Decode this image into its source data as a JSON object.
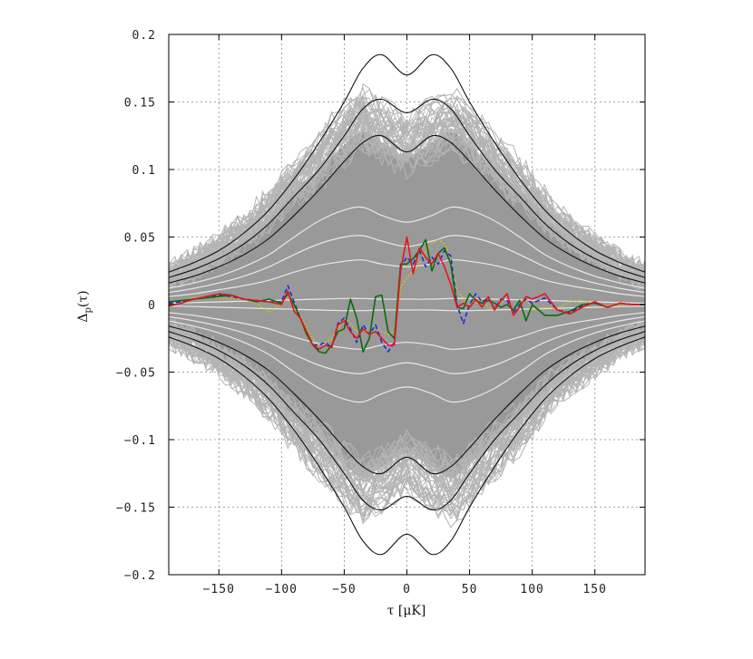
{
  "chart_data": {
    "type": "line",
    "xlabel": "τ  [μK]",
    "ylabel": "Δp(τ)",
    "ylabel_main": "Δ",
    "ylabel_sub": "p",
    "ylabel_arg": "(τ)",
    "xlim": [
      -190,
      190
    ],
    "ylim": [
      -0.2,
      0.2
    ],
    "x_ticks": [
      -150,
      -100,
      -50,
      0,
      50,
      100,
      150
    ],
    "y_ticks": [
      -0.2,
      -0.15,
      -0.1,
      -0.05,
      0,
      0.05,
      0.1,
      0.15,
      0.2
    ],
    "x_tick_labels": [
      "−150",
      "−100",
      "−50",
      "0",
      "50",
      "100",
      "150"
    ],
    "y_tick_labels": [
      "−0.2",
      "−0.15",
      "−0.1",
      "−0.05",
      "0",
      "0.05",
      "0.1",
      "0.15",
      "0.2"
    ],
    "grid": true,
    "envelope": {
      "description": "grey band of simulated curves",
      "color": "#999999",
      "sim_line_color": "#b4b4b4",
      "x": [
        -190,
        -170,
        -150,
        -130,
        -110,
        -90,
        -70,
        -50,
        -35,
        -20,
        0,
        20,
        35,
        50,
        70,
        90,
        110,
        130,
        150,
        170,
        190
      ],
      "outer": [
        0.02,
        0.028,
        0.038,
        0.05,
        0.065,
        0.085,
        0.1,
        0.118,
        0.128,
        0.12,
        0.11,
        0.12,
        0.128,
        0.118,
        0.1,
        0.085,
        0.065,
        0.05,
        0.038,
        0.028,
        0.02
      ]
    },
    "confidence_white": {
      "color": "#e8e8e8",
      "x": [
        -190,
        -170,
        -150,
        -130,
        -110,
        -90,
        -70,
        -50,
        -35,
        -20,
        0,
        20,
        35,
        50,
        70,
        90,
        110,
        130,
        150,
        170,
        190
      ],
      "levels": [
        [
          0.001,
          0.0015,
          0.002,
          0.0025,
          0.003,
          0.0035,
          0.004,
          0.0045,
          0.0045,
          0.004,
          0.004,
          0.004,
          0.0045,
          0.0045,
          0.004,
          0.0035,
          0.003,
          0.0025,
          0.002,
          0.0015,
          0.001
        ],
        [
          0.006,
          0.008,
          0.011,
          0.014,
          0.018,
          0.024,
          0.029,
          0.032,
          0.033,
          0.03,
          0.028,
          0.03,
          0.033,
          0.032,
          0.029,
          0.024,
          0.018,
          0.014,
          0.011,
          0.008,
          0.006
        ],
        [
          0.009,
          0.012,
          0.016,
          0.021,
          0.028,
          0.037,
          0.045,
          0.05,
          0.051,
          0.047,
          0.043,
          0.047,
          0.051,
          0.05,
          0.045,
          0.037,
          0.028,
          0.021,
          0.016,
          0.012,
          0.009
        ],
        [
          0.012,
          0.016,
          0.021,
          0.028,
          0.037,
          0.05,
          0.062,
          0.07,
          0.072,
          0.066,
          0.061,
          0.066,
          0.072,
          0.07,
          0.062,
          0.05,
          0.037,
          0.028,
          0.021,
          0.016,
          0.012
        ]
      ]
    },
    "confidence_black": {
      "color": "#111111",
      "x": [
        -190,
        -170,
        -150,
        -130,
        -110,
        -90,
        -70,
        -50,
        -35,
        -20,
        0,
        20,
        35,
        50,
        70,
        90,
        110,
        130,
        150,
        170,
        190
      ],
      "levels": [
        [
          0.016,
          0.021,
          0.028,
          0.037,
          0.049,
          0.066,
          0.085,
          0.106,
          0.12,
          0.125,
          0.113,
          0.125,
          0.12,
          0.106,
          0.085,
          0.066,
          0.049,
          0.037,
          0.028,
          0.021,
          0.016
        ],
        [
          0.02,
          0.026,
          0.034,
          0.045,
          0.06,
          0.08,
          0.1,
          0.125,
          0.145,
          0.152,
          0.142,
          0.152,
          0.145,
          0.125,
          0.1,
          0.08,
          0.06,
          0.045,
          0.034,
          0.026,
          0.02
        ],
        [
          0.024,
          0.031,
          0.04,
          0.053,
          0.07,
          0.093,
          0.12,
          0.15,
          0.175,
          0.185,
          0.17,
          0.185,
          0.175,
          0.15,
          0.12,
          0.093,
          0.07,
          0.053,
          0.04,
          0.031,
          0.024
        ]
      ]
    },
    "series": [
      {
        "color": "#e8141c",
        "style": "solid",
        "x": [
          -190,
          -180,
          -170,
          -160,
          -150,
          -140,
          -130,
          -120,
          -110,
          -100,
          -95,
          -90,
          -85,
          -80,
          -75,
          -70,
          -65,
          -60,
          -55,
          -50,
          -45,
          -40,
          -35,
          -30,
          -25,
          -20,
          -15,
          -10,
          -5,
          0,
          5,
          10,
          15,
          20,
          25,
          30,
          35,
          40,
          45,
          50,
          55,
          60,
          65,
          70,
          75,
          80,
          85,
          90,
          95,
          100,
          110,
          120,
          130,
          140,
          150,
          160,
          170,
          180,
          190
        ],
        "y": [
          -0.001,
          0.001,
          0.004,
          0.006,
          0.008,
          0.007,
          0.004,
          0.003,
          0.002,
          0.0,
          0.01,
          -0.005,
          -0.01,
          -0.02,
          -0.03,
          -0.033,
          -0.03,
          -0.032,
          -0.015,
          -0.012,
          -0.02,
          -0.025,
          -0.018,
          -0.022,
          -0.02,
          -0.025,
          -0.03,
          -0.03,
          0.025,
          0.05,
          0.023,
          0.042,
          0.035,
          0.03,
          0.038,
          0.028,
          0.015,
          -0.002,
          0.001,
          -0.002,
          0.004,
          -0.002,
          0.006,
          -0.004,
          0.003,
          0.008,
          -0.008,
          -0.002,
          0.006,
          0.004,
          0.008,
          -0.004,
          -0.007,
          -0.002,
          0.002,
          -0.002,
          0.001,
          0.0,
          0.0
        ]
      },
      {
        "color": "#0c6a10",
        "style": "solid",
        "x": [
          -190,
          -180,
          -170,
          -160,
          -150,
          -140,
          -130,
          -120,
          -110,
          -100,
          -95,
          -90,
          -85,
          -80,
          -75,
          -70,
          -65,
          -60,
          -55,
          -50,
          -45,
          -40,
          -35,
          -30,
          -25,
          -20,
          -15,
          -10,
          -5,
          0,
          5,
          10,
          15,
          20,
          25,
          30,
          35,
          40,
          45,
          50,
          55,
          60,
          65,
          70,
          75,
          80,
          85,
          90,
          95,
          100,
          110,
          120,
          130,
          140,
          150,
          160,
          170,
          180,
          190
        ],
        "y": [
          0.002,
          0.003,
          0.004,
          0.005,
          0.006,
          0.007,
          0.004,
          0.002,
          0.004,
          0.001,
          0.008,
          0.0,
          -0.01,
          -0.022,
          -0.03,
          -0.035,
          -0.036,
          -0.03,
          -0.02,
          -0.018,
          0.004,
          -0.01,
          -0.035,
          -0.025,
          0.006,
          0.007,
          -0.02,
          -0.025,
          0.03,
          0.03,
          0.034,
          0.04,
          0.048,
          0.025,
          0.038,
          0.042,
          0.03,
          -0.002,
          -0.003,
          0.008,
          0.003,
          0.001,
          0.003,
          0.001,
          -0.002,
          0.0,
          -0.004,
          0.003,
          -0.012,
          0.0,
          -0.008,
          -0.008,
          -0.005,
          0.0,
          0.001,
          -0.002,
          0.001,
          0.0,
          0.0
        ]
      },
      {
        "color": "#1a2de0",
        "style": "dashed",
        "x": [
          -190,
          -180,
          -170,
          -160,
          -150,
          -140,
          -130,
          -120,
          -110,
          -100,
          -95,
          -90,
          -85,
          -80,
          -75,
          -70,
          -65,
          -60,
          -55,
          -50,
          -45,
          -40,
          -35,
          -30,
          -25,
          -20,
          -15,
          -10,
          -5,
          0,
          5,
          10,
          15,
          20,
          25,
          30,
          35,
          40,
          45,
          50,
          55,
          60,
          65,
          70,
          75,
          80,
          85,
          90,
          95,
          100,
          110,
          120,
          130,
          140,
          150,
          160,
          170,
          180,
          190
        ],
        "y": [
          0.001,
          0.002,
          0.004,
          0.006,
          0.007,
          0.006,
          0.004,
          0.003,
          0.002,
          0.002,
          0.014,
          0.002,
          -0.01,
          -0.02,
          -0.03,
          -0.03,
          -0.028,
          -0.032,
          -0.014,
          -0.01,
          -0.018,
          -0.028,
          -0.015,
          -0.022,
          -0.015,
          -0.028,
          -0.035,
          -0.028,
          0.028,
          0.035,
          0.03,
          0.04,
          0.028,
          0.035,
          0.03,
          0.04,
          0.036,
          0.0,
          -0.014,
          0.0,
          0.008,
          0.002,
          0.005,
          -0.003,
          0.004,
          0.003,
          -0.006,
          0.0,
          0.004,
          0.001,
          0.005,
          -0.004,
          -0.006,
          -0.001,
          0.002,
          -0.002,
          0.001,
          0.0,
          0.0
        ]
      },
      {
        "color": "#c8c41a",
        "style": "dotted",
        "x": [
          -190,
          -180,
          -170,
          -160,
          -150,
          -140,
          -130,
          -120,
          -110,
          -100,
          -95,
          -90,
          -85,
          -80,
          -75,
          -70,
          -65,
          -60,
          -55,
          -50,
          -45,
          -40,
          -35,
          -30,
          -25,
          -20,
          -15,
          -10,
          -5,
          0,
          5,
          10,
          15,
          20,
          25,
          30,
          35,
          40,
          45,
          50,
          55,
          60,
          65,
          70,
          75,
          80,
          85,
          90,
          95,
          100,
          110,
          120,
          130,
          140,
          150,
          160,
          170,
          180,
          190
        ],
        "y": [
          0.002,
          0.003,
          0.005,
          0.006,
          0.005,
          0.004,
          0.004,
          0.001,
          -0.006,
          0.001,
          0.005,
          0.002,
          -0.008,
          -0.018,
          -0.025,
          -0.03,
          -0.028,
          -0.025,
          -0.018,
          -0.01,
          -0.014,
          -0.02,
          -0.018,
          -0.02,
          -0.016,
          -0.02,
          -0.022,
          -0.02,
          0.012,
          0.02,
          0.025,
          0.03,
          0.04,
          0.045,
          0.048,
          0.045,
          0.035,
          0.01,
          0.005,
          0.003,
          0.002,
          0.004,
          -0.002,
          -0.004,
          0.002,
          0.003,
          -0.006,
          -0.003,
          0.005,
          -0.004,
          -0.002,
          -0.003,
          0.002,
          0.003,
          0.001,
          -0.001,
          0.0,
          0.0,
          0.0
        ]
      }
    ]
  }
}
